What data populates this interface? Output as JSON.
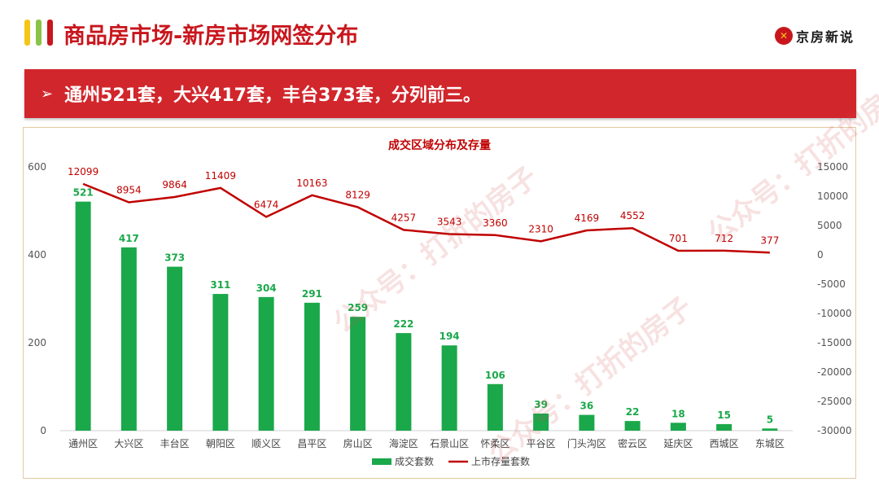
{
  "header": {
    "title": "商品房市场-新房市场网签分布",
    "accent_colors": [
      "#f5c518",
      "#8bc34a",
      "#c8161d"
    ],
    "logo": {
      "icon": "logo-badge-icon",
      "text": "京房新说"
    }
  },
  "banner": {
    "icon": "arrow-right-icon",
    "text": "通州521套，大兴417套，丰台373套，分列前三。"
  },
  "watermark": "公众号：打折的房子",
  "chart_data": {
    "type": "bar",
    "title": "成交区域分布及存量",
    "categories": [
      "通州区",
      "大兴区",
      "丰台区",
      "朝阳区",
      "顺义区",
      "昌平区",
      "房山区",
      "海淀区",
      "石景山区",
      "怀柔区",
      "平谷区",
      "门头沟区",
      "密云区",
      "延庆区",
      "西城区",
      "东城区"
    ],
    "series": [
      {
        "name": "成交套数",
        "type": "bar",
        "axis": "left",
        "color": "#1aa84a",
        "values": [
          521,
          417,
          373,
          311,
          304,
          291,
          259,
          222,
          194,
          106,
          39,
          36,
          22,
          18,
          15,
          5
        ]
      },
      {
        "name": "上市存量套数",
        "type": "line",
        "axis": "right",
        "color": "#c00000",
        "values": [
          12099,
          8954,
          9864,
          11409,
          6474,
          10163,
          8129,
          4257,
          3543,
          3360,
          2310,
          4169,
          4552,
          701,
          712,
          377
        ]
      }
    ],
    "y_left": {
      "min": 0,
      "max": 600,
      "ticks": [
        0,
        200,
        400,
        600
      ]
    },
    "y_right": {
      "min": -30000,
      "max": 15000,
      "ticks": [
        -30000,
        -25000,
        -20000,
        -15000,
        -10000,
        -5000,
        0,
        5000,
        10000,
        15000
      ]
    },
    "legend_position": "bottom",
    "grid": false
  }
}
